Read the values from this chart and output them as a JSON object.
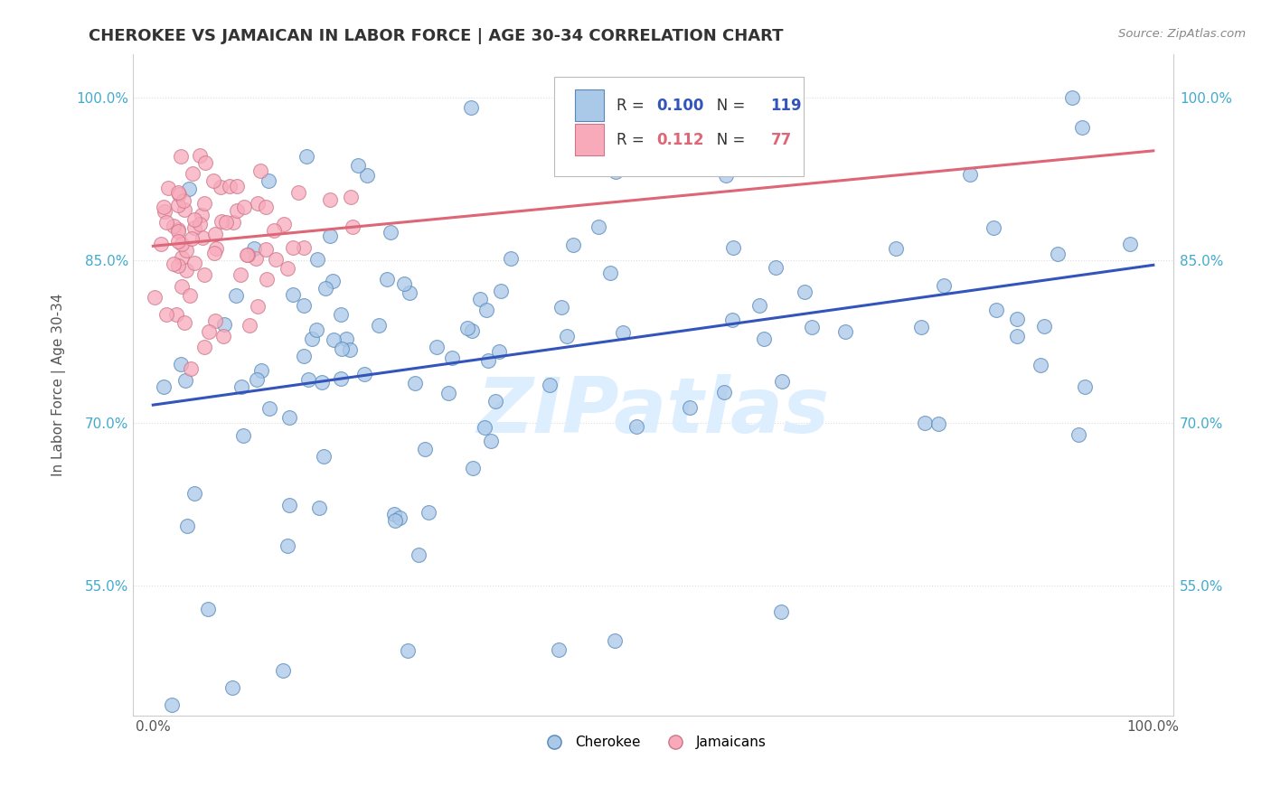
{
  "title": "CHEROKEE VS JAMAICAN IN LABOR FORCE | AGE 30-34 CORRELATION CHART",
  "source": "Source: ZipAtlas.com",
  "ylabel": "In Labor Force | Age 30-34",
  "xlim": [
    -0.02,
    1.02
  ],
  "ylim": [
    0.43,
    1.04
  ],
  "yticks": [
    0.55,
    0.7,
    0.85,
    1.0
  ],
  "ytick_labels": [
    "55.0%",
    "70.0%",
    "85.0%",
    "100.0%"
  ],
  "cherokee_R": 0.1,
  "cherokee_N": 119,
  "jamaican_R": 0.112,
  "jamaican_N": 77,
  "cherokee_color": "#aac8e8",
  "cherokee_edge": "#5588bb",
  "jamaican_color": "#f8aabb",
  "jamaican_edge": "#cc7788",
  "blue_line_color": "#3355bb",
  "pink_line_color": "#dd6677",
  "watermark_color": "#ddeeff",
  "title_color": "#333333",
  "axis_color": "#555555",
  "tick_color": "#44aacc",
  "grid_color": "#dddddd",
  "source_color": "#888888"
}
